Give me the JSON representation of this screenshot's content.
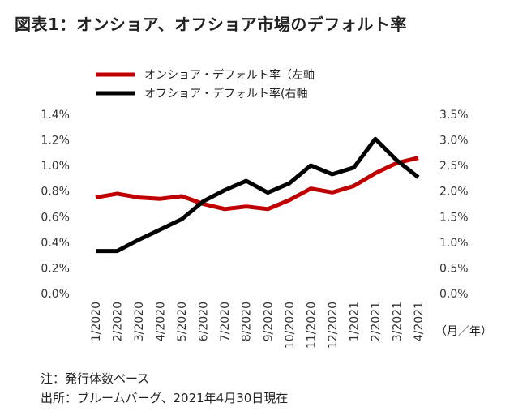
{
  "title": "図表1：オンショア、オフショア市場のデフォルト率",
  "unit_label": "（月／年）",
  "note": "注：発行体数ベース",
  "source": "出所：ブルームバーグ、2021年4月30日現在",
  "chart_data": {
    "type": "line",
    "categories": [
      "1/2020",
      "2/2020",
      "3/2020",
      "4/2020",
      "5/2020",
      "6/2020",
      "7/2020",
      "8/2020",
      "9/2020",
      "10/2020",
      "11/2020",
      "12/2020",
      "1/2021",
      "2/2021",
      "3/2021",
      "4/2021"
    ],
    "left_axis": {
      "ylim": [
        0,
        1.4
      ],
      "ticks": [
        "0.0%",
        "0.2%",
        "0.4%",
        "0.6%",
        "0.8%",
        "1.0%",
        "1.2%",
        "1.4%"
      ]
    },
    "right_axis": {
      "ylim": [
        0,
        3.5
      ],
      "ticks": [
        "0.0%",
        "0.5%",
        "1.0%",
        "1.5%",
        "2.0%",
        "2.5%",
        "3.0%",
        "3.5%"
      ]
    },
    "series": [
      {
        "name": "オンショア・デフォルト率（左軸",
        "axis": "left",
        "color": "#c00000",
        "values": [
          0.75,
          0.78,
          0.75,
          0.74,
          0.76,
          0.7,
          0.66,
          0.68,
          0.66,
          0.73,
          0.82,
          0.79,
          0.84,
          0.94,
          1.02,
          1.06
        ]
      },
      {
        "name": "オフショア・デフォルト率(右軸",
        "axis": "right",
        "color": "#000000",
        "values": [
          0.83,
          0.83,
          1.05,
          1.25,
          1.45,
          1.8,
          2.02,
          2.2,
          1.97,
          2.15,
          2.5,
          2.33,
          2.46,
          3.02,
          2.6,
          2.27
        ]
      }
    ]
  }
}
